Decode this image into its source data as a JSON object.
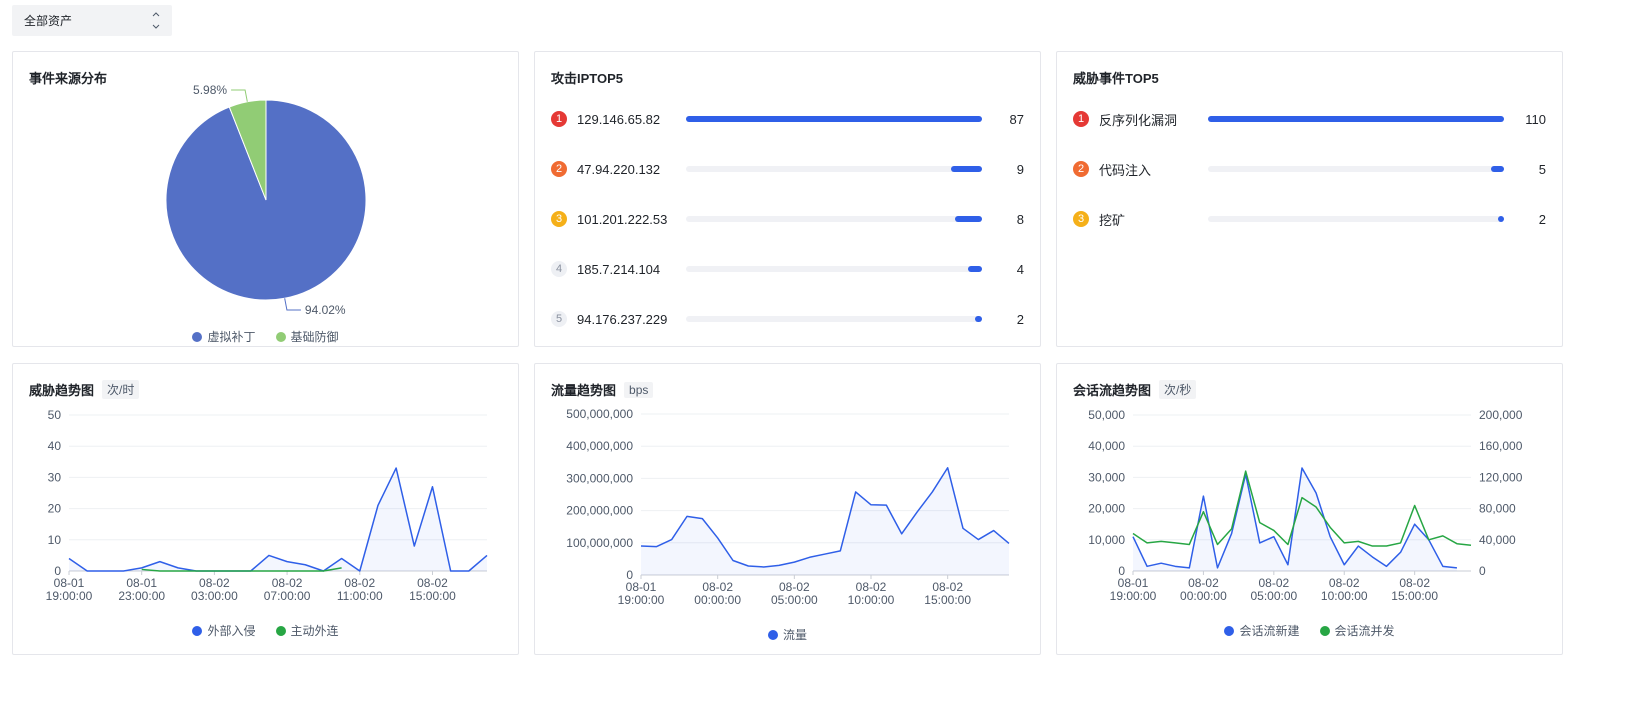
{
  "asset_filter": {
    "selected": "全部资产"
  },
  "colors": {
    "primary_blue": "#2f5fe8",
    "pie_blue": "#5470c6",
    "pie_green": "#91cc75",
    "series_green": "#27a644",
    "rank1": "#e53935",
    "rank2": "#f06b32",
    "rank3": "#f5b019"
  },
  "event_source": {
    "title": "事件来源分布",
    "chart_data": {
      "type": "pie",
      "slices": [
        {
          "name": "虚拟补丁",
          "value": 94.02,
          "label": "94.02%"
        },
        {
          "name": "基础防御",
          "value": 5.98,
          "label": "5.98%"
        }
      ],
      "legend": [
        "虚拟补丁",
        "基础防御"
      ],
      "legend_position": "bottom"
    }
  },
  "attack_ip": {
    "title": "攻击IPTOP5",
    "items": [
      {
        "rank": "1",
        "label": "129.146.65.82",
        "value": 87
      },
      {
        "rank": "2",
        "label": "47.94.220.132",
        "value": 9
      },
      {
        "rank": "3",
        "label": "101.201.222.53",
        "value": 8
      },
      {
        "rank": "4",
        "label": "185.7.214.104",
        "value": 4
      },
      {
        "rank": "5",
        "label": "94.176.237.229",
        "value": 2
      }
    ]
  },
  "threat_event": {
    "title": "威胁事件TOP5",
    "items": [
      {
        "rank": "1",
        "label": "反序列化漏洞",
        "value": 110
      },
      {
        "rank": "2",
        "label": "代码注入",
        "value": 5
      },
      {
        "rank": "3",
        "label": "挖矿",
        "value": 2
      }
    ]
  },
  "threat_trend": {
    "title": "威胁趋势图",
    "unit": "次/时",
    "chart_data": {
      "type": "line",
      "ylim": [
        0,
        50
      ],
      "y_ticks": [
        "0",
        "10",
        "20",
        "30",
        "40",
        "50"
      ],
      "x_tick_labels": [
        [
          "08-01",
          "19:00:00"
        ],
        [
          "08-01",
          "23:00:00"
        ],
        [
          "08-02",
          "03:00:00"
        ],
        [
          "08-02",
          "07:00:00"
        ],
        [
          "08-02",
          "11:00:00"
        ],
        [
          "08-02",
          "15:00:00"
        ]
      ],
      "x_tick_index": [
        0,
        4,
        8,
        12,
        16,
        20
      ],
      "series": [
        {
          "name": "外部入侵",
          "color": "#2f5fe8",
          "area": true,
          "values": [
            4,
            0,
            0,
            0,
            1,
            3,
            1,
            0,
            0,
            0,
            0,
            5,
            3,
            2,
            0,
            4,
            0,
            21,
            33,
            8,
            27,
            0,
            0,
            5
          ]
        },
        {
          "name": "主动外连",
          "color": "#27a644",
          "area": false,
          "values": [
            null,
            null,
            null,
            null,
            0.5,
            0,
            0,
            0,
            0,
            0,
            0,
            0,
            0,
            0,
            0,
            1,
            null,
            null,
            null,
            null,
            null,
            null,
            null,
            null
          ]
        }
      ],
      "legend_position": "bottom"
    }
  },
  "traffic_trend": {
    "title": "流量趋势图",
    "unit": "bps",
    "chart_data": {
      "type": "line",
      "ylim": [
        0,
        500000000
      ],
      "y_ticks": [
        "0",
        "100,000,000",
        "200,000,000",
        "300,000,000",
        "400,000,000",
        "500,000,000"
      ],
      "x_tick_labels": [
        [
          "08-01",
          "19:00:00"
        ],
        [
          "08-02",
          "00:00:00"
        ],
        [
          "08-02",
          "05:00:00"
        ],
        [
          "08-02",
          "10:00:00"
        ],
        [
          "08-02",
          "15:00:00"
        ]
      ],
      "x_tick_index": [
        0,
        5,
        10,
        15,
        20
      ],
      "series": [
        {
          "name": "流量",
          "color": "#2f5fe8",
          "area": true,
          "values": [
            90000000,
            88000000,
            110000000,
            182000000,
            175000000,
            115000000,
            45000000,
            28000000,
            25000000,
            30000000,
            40000000,
            55000000,
            65000000,
            75000000,
            258000000,
            218000000,
            217000000,
            128000000,
            195000000,
            258000000,
            333000000,
            145000000,
            110000000,
            138000000,
            98000000
          ]
        }
      ],
      "legend_position": "bottom"
    }
  },
  "session_trend": {
    "title": "会话流趋势图",
    "unit": "次/秒",
    "chart_data": {
      "type": "line",
      "ylim_left": [
        0,
        50000
      ],
      "ylim_right": [
        0,
        200000
      ],
      "y_ticks_left": [
        "0",
        "10,000",
        "20,000",
        "30,000",
        "40,000",
        "50,000"
      ],
      "y_ticks_right": [
        "0",
        "40,000",
        "80,000",
        "120,000",
        "160,000",
        "200,000"
      ],
      "x_tick_labels": [
        [
          "08-01",
          "19:00:00"
        ],
        [
          "08-02",
          "00:00:00"
        ],
        [
          "08-02",
          "05:00:00"
        ],
        [
          "08-02",
          "10:00:00"
        ],
        [
          "08-02",
          "15:00:00"
        ]
      ],
      "x_tick_index": [
        0,
        5,
        10,
        15,
        20
      ],
      "series": [
        {
          "name": "会话流新建",
          "color": "#2f5fe8",
          "area": true,
          "axis": "left",
          "values": [
            11000,
            1500,
            2500,
            1500,
            1000,
            24000,
            1000,
            12000,
            31000,
            9000,
            11000,
            2000,
            33000,
            25000,
            11000,
            2000,
            8000,
            4500,
            1500,
            6000,
            15000,
            10000,
            1500,
            1000
          ]
        },
        {
          "name": "会话流并发",
          "color": "#27a644",
          "area": false,
          "axis": "right",
          "values": [
            48000,
            36000,
            38000,
            36000,
            34000,
            76000,
            34000,
            54000,
            128000,
            62000,
            52000,
            34000,
            94000,
            82000,
            56000,
            36000,
            38000,
            32000,
            32000,
            36000,
            84000,
            40000,
            45000,
            35000,
            33000
          ]
        }
      ],
      "legend_position": "bottom"
    }
  }
}
